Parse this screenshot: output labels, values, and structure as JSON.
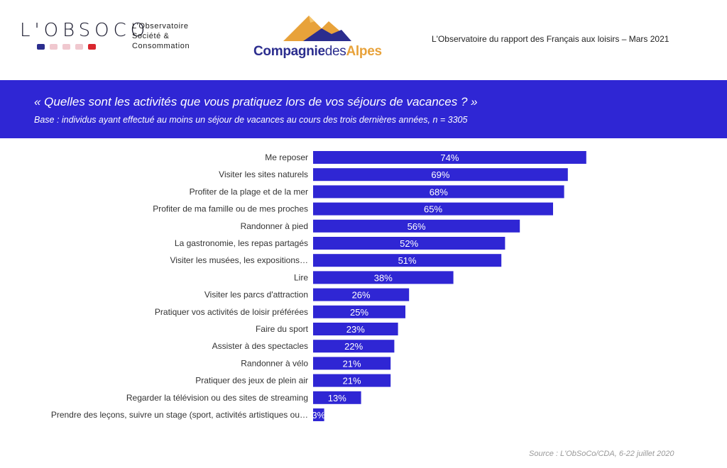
{
  "header": {
    "obsoco_word": "L'OBSOCO",
    "obsoco_lines": [
      "L'Observatoire",
      "Société &",
      "Consommation"
    ],
    "cda_part1": "Compagnie",
    "cda_part2": "des",
    "cda_part3": "Alpes",
    "report_title": "L'Observatoire  du rapport des Français aux loisirs  – Mars 2021"
  },
  "banner": {
    "question": "« Quelles sont les activités que vous pratiquez lors de vos séjours de vacances ? »",
    "base": "Base : individus ayant effectué au moins un séjour de vacances au cours des trois dernières années, n = 3305"
  },
  "colors": {
    "banner": "#2f26d4",
    "bar": "#2f26d4",
    "dot1": "#2b2d8e",
    "dot2": "#f0c8cf",
    "dot3": "#f0c8cf",
    "dot4": "#f0c8cf",
    "dot5": "#d9262e"
  },
  "chart_data": {
    "type": "bar",
    "orientation": "horizontal",
    "categories": [
      "Me reposer",
      "Visiter les sites naturels",
      "Profiter de la plage et de la mer",
      "Profiter de ma famille ou de mes proches",
      "Randonner à pied",
      "La gastronomie, les repas partagés",
      "Visiter les musées,  les expositions…",
      "Lire",
      "Visiter les parcs d'attraction",
      "Pratiquer vos activités de loisir préférées",
      "Faire du sport",
      "Assister à des spectacles",
      "Randonner à vélo",
      "Pratiquer des jeux de plein air",
      "Regarder la télévision ou des sites de streaming",
      "Prendre des leçons, suivre un stage (sport, activités artistiques ou…"
    ],
    "values": [
      74,
      69,
      68,
      65,
      56,
      52,
      51,
      38,
      26,
      25,
      23,
      22,
      21,
      21,
      13,
      3
    ],
    "value_labels": [
      "74%",
      "69%",
      "68%",
      "65%",
      "56%",
      "52%",
      "51%",
      "38%",
      "26%",
      "25%",
      "23%",
      "22%",
      "21%",
      "21%",
      "13%",
      "3%"
    ],
    "xlim": [
      0,
      100
    ],
    "grid": false
  },
  "source": "Source : L'ObSoCo/CDA, 6-22 juillet  2020"
}
